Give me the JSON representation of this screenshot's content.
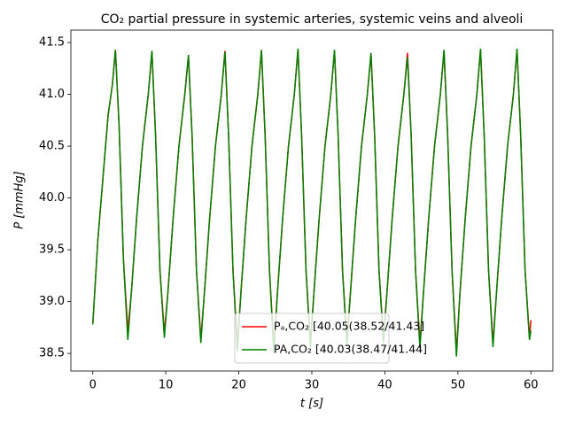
{
  "chart_data": {
    "type": "line",
    "title": "CO₂ partial pressure in systemic arteries, systemic veins and alveoli",
    "xlabel": "t [s]",
    "ylabel": "P [mmHg]",
    "xlim": [
      -3,
      63
    ],
    "xticks": [
      0,
      10,
      20,
      30,
      40,
      50,
      60
    ],
    "ylim": [
      38.33,
      41.62
    ],
    "yticks": [
      38.5,
      {
        "value": 39,
        "label": "39.0"
      },
      39.5,
      {
        "value": 40,
        "label": "40.0"
      },
      40.5,
      {
        "value": 41,
        "label": "41.0"
      },
      41.5
    ],
    "legend": "lower center",
    "x": [
      0,
      0.7,
      1.4,
      2.1,
      2.7,
      3.1,
      3.6,
      4.2,
      4.8,
      5.3,
      6.0,
      6.8,
      7.6,
      8.1,
      8.6,
      9.2,
      9.8,
      10.3,
      11.0,
      11.8,
      12.6,
      13.1,
      13.6,
      14.2,
      14.8,
      15.3,
      16.0,
      16.8,
      17.6,
      18.1,
      18.6,
      19.2,
      19.8,
      20.3,
      21.0,
      21.8,
      22.6,
      23.1,
      23.6,
      24.2,
      24.8,
      25.3,
      26.0,
      26.8,
      27.6,
      28.1,
      28.6,
      29.2,
      29.8,
      30.3,
      31.0,
      31.8,
      32.6,
      33.1,
      33.6,
      34.2,
      34.8,
      35.3,
      36.0,
      36.8,
      37.6,
      38.1,
      38.6,
      39.2,
      39.8,
      40.3,
      41.0,
      41.8,
      42.6,
      43.1,
      43.6,
      44.2,
      44.8,
      45.3,
      46.0,
      46.8,
      47.6,
      48.1,
      48.6,
      49.2,
      49.8,
      50.3,
      51.0,
      51.8,
      52.6,
      53.1,
      53.6,
      54.2,
      54.8,
      55.3,
      56.0,
      56.8,
      57.6,
      58.1,
      58.6,
      59.2,
      59.8,
      60
    ],
    "series": [
      {
        "name": "Pₐ,CO₂ [40.05(38.52/41.43]",
        "color": "#ff0000",
        "values": [
          38.78,
          39.6,
          40.2,
          40.8,
          41.1,
          41.43,
          40.7,
          39.4,
          38.72,
          39.1,
          39.8,
          40.5,
          41.0,
          41.41,
          40.6,
          39.3,
          38.7,
          39.1,
          39.8,
          40.5,
          41.0,
          41.37,
          40.6,
          39.3,
          38.64,
          39.1,
          39.8,
          40.5,
          41.0,
          41.42,
          40.6,
          39.3,
          38.58,
          39.1,
          39.8,
          40.5,
          41.0,
          41.42,
          40.6,
          39.3,
          38.55,
          39.1,
          39.8,
          40.5,
          41.0,
          41.43,
          40.6,
          39.3,
          38.6,
          39.1,
          39.8,
          40.5,
          41.0,
          41.42,
          40.6,
          39.3,
          38.62,
          39.1,
          39.8,
          40.5,
          41.0,
          41.39,
          40.6,
          39.3,
          38.65,
          39.1,
          39.8,
          40.5,
          41.0,
          41.4,
          40.6,
          39.3,
          38.6,
          39.1,
          39.8,
          40.5,
          41.0,
          41.42,
          40.6,
          39.3,
          38.52,
          39.1,
          39.8,
          40.5,
          41.0,
          41.43,
          40.6,
          39.3,
          38.6,
          39.1,
          39.8,
          40.5,
          41.0,
          41.43,
          40.6,
          39.3,
          38.66,
          38.82
        ]
      },
      {
        "name": "PA,CO₂ [40.03(38.47/41.44]",
        "color": "#008000",
        "values": [
          38.78,
          39.6,
          40.2,
          40.8,
          41.1,
          41.43,
          40.7,
          39.4,
          38.63,
          39.1,
          39.8,
          40.5,
          41.0,
          41.42,
          40.6,
          39.3,
          38.65,
          39.1,
          39.8,
          40.5,
          41.0,
          41.38,
          40.6,
          39.3,
          38.6,
          39.1,
          39.8,
          40.5,
          41.0,
          41.41,
          40.6,
          39.3,
          38.52,
          39.1,
          39.8,
          40.5,
          41.0,
          41.43,
          40.6,
          39.3,
          38.5,
          39.1,
          39.8,
          40.5,
          41.0,
          41.44,
          40.6,
          39.3,
          38.56,
          39.1,
          39.8,
          40.5,
          41.0,
          41.43,
          40.6,
          39.3,
          38.58,
          39.1,
          39.8,
          40.5,
          41.0,
          41.4,
          40.6,
          39.3,
          38.6,
          39.1,
          39.8,
          40.5,
          41.0,
          41.36,
          40.6,
          39.3,
          38.55,
          39.1,
          39.8,
          40.5,
          41.0,
          41.43,
          40.6,
          39.3,
          38.47,
          39.1,
          39.8,
          40.5,
          41.0,
          41.44,
          40.6,
          39.3,
          38.56,
          39.1,
          39.8,
          40.5,
          41.0,
          41.44,
          40.6,
          39.3,
          38.63,
          38.72
        ]
      }
    ]
  }
}
